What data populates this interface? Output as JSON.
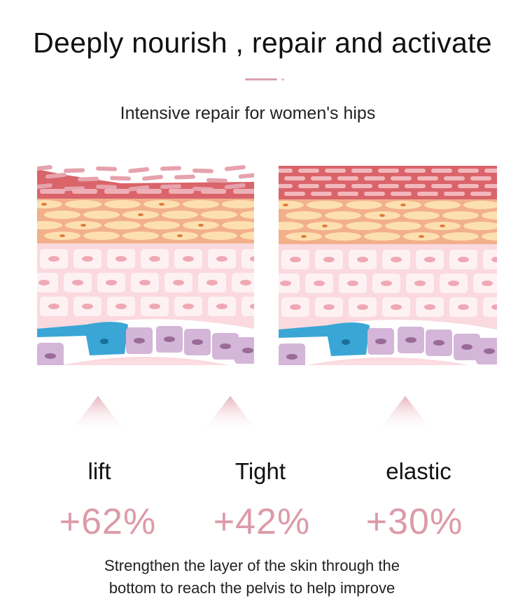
{
  "title": "Deeply nourish , repair and activate",
  "subtitle": "Intensive repair for women's hips",
  "colors": {
    "accent_pink": "#dd9aa8",
    "skin_red": "#d9646a",
    "skin_orange": "#f2b08a",
    "skin_cream": "#fde0b0",
    "skin_pink": "#fad9df",
    "cell_blue": "#3aa6d6",
    "cell_purple": "#d4b6d8"
  },
  "illustrations": [
    {
      "name": "skin-before",
      "state": "damaged"
    },
    {
      "name": "skin-after",
      "state": "repaired"
    }
  ],
  "stats": [
    {
      "label": "lift",
      "value": "+62%"
    },
    {
      "label": "Tight",
      "value": "+42%"
    },
    {
      "label": "elastic",
      "value": "+30%"
    }
  ],
  "footer": {
    "line1": "Strengthen the layer of the skin through the",
    "line2": "bottom to reach the pelvis to help improve"
  }
}
